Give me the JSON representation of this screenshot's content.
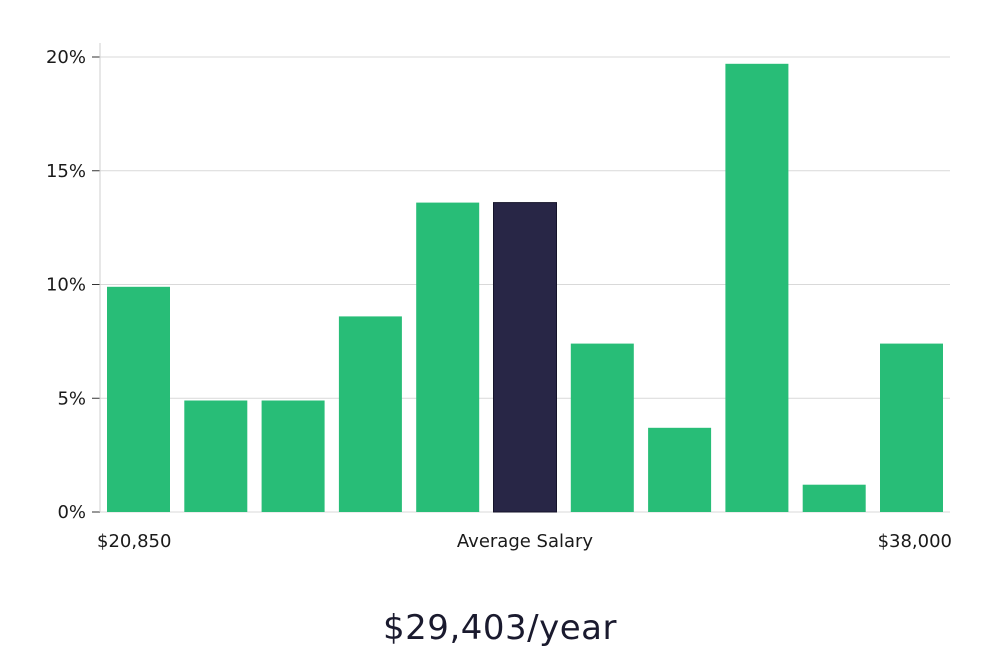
{
  "chart_data": {
    "type": "bar",
    "values": [
      9.9,
      4.9,
      4.9,
      8.6,
      13.6,
      13.6,
      7.4,
      3.7,
      19.7,
      1.2,
      7.4
    ],
    "highlight_index": 5,
    "ylim": [
      0,
      20
    ],
    "y_ticks": [
      0,
      5,
      10,
      15,
      20
    ],
    "y_tick_format": "{v}%",
    "x_labels": {
      "left": "$20,850",
      "center": "Average Salary",
      "right": "$38,000"
    },
    "grid": true,
    "colors": {
      "bar": "#28bd77",
      "highlight": "#282646",
      "grid": "#d9d9d9"
    }
  },
  "summary": {
    "average_salary": "$29,403/year"
  }
}
